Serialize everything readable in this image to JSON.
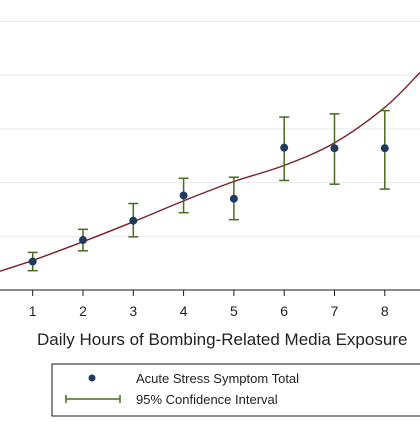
{
  "chart_data": {
    "type": "scatter",
    "title": "",
    "xlabel": "Daily Hours of Bombing-Related Media Exposure",
    "ylabel": "",
    "x_ticks": [
      1,
      2,
      3,
      4,
      5,
      6,
      7,
      8
    ],
    "xlim": [
      0.35,
      8.7
    ],
    "ylim": [
      0,
      5.4
    ],
    "grid": "horizontal",
    "legend_position": "bottom",
    "series": [
      {
        "name": "Acute Stress Symptom Total",
        "color": "#1f3a5f",
        "points": [
          {
            "x": 1,
            "y": 0.53,
            "lo": 0.36,
            "hi": 0.7
          },
          {
            "x": 2,
            "y": 0.93,
            "lo": 0.73,
            "hi": 1.13
          },
          {
            "x": 3,
            "y": 1.29,
            "lo": 0.99,
            "hi": 1.61
          },
          {
            "x": 4,
            "y": 1.76,
            "lo": 1.44,
            "hi": 2.08
          },
          {
            "x": 5,
            "y": 1.7,
            "lo": 1.31,
            "hi": 2.1
          },
          {
            "x": 6,
            "y": 2.65,
            "lo": 2.04,
            "hi": 3.22
          },
          {
            "x": 7,
            "y": 2.64,
            "lo": 1.97,
            "hi": 3.28
          },
          {
            "x": 8,
            "y": 2.64,
            "lo": 1.88,
            "hi": 3.34
          }
        ]
      },
      {
        "name": "95% Confidence Interval",
        "color": "#4a6a1e"
      }
    ],
    "fit_curve": {
      "color": "#7b1f2a",
      "x": [
        0.35,
        1,
        2,
        3,
        4,
        5,
        6,
        7,
        8,
        8.7
      ],
      "y": [
        0.35,
        0.55,
        0.9,
        1.27,
        1.66,
        2.02,
        2.32,
        2.74,
        3.4,
        4.05
      ]
    }
  }
}
